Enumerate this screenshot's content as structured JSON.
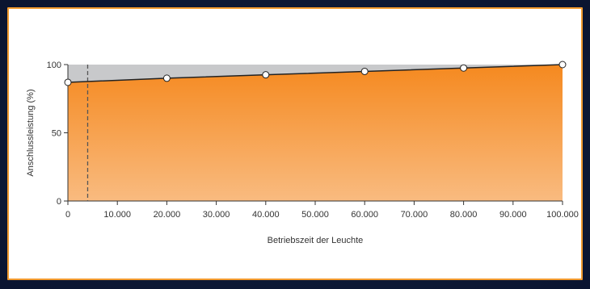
{
  "chart_data": {
    "type": "area",
    "xlabel": "Betriebszeit der Leuchte",
    "ylabel": "Anschlussleistung (%)",
    "xlim": [
      0,
      100000
    ],
    "ylim": [
      0,
      100
    ],
    "x_ticks": [
      {
        "value": 0,
        "label": "0"
      },
      {
        "value": 10000,
        "label": "10.000"
      },
      {
        "value": 20000,
        "label": "20.000"
      },
      {
        "value": 30000,
        "label": "30.000"
      },
      {
        "value": 40000,
        "label": "40.000"
      },
      {
        "value": 50000,
        "label": "50.000"
      },
      {
        "value": 60000,
        "label": "60.000"
      },
      {
        "value": 70000,
        "label": "70.000"
      },
      {
        "value": 80000,
        "label": "80.000"
      },
      {
        "value": 90000,
        "label": "90.000"
      },
      {
        "value": 100000,
        "label": "100.000"
      }
    ],
    "y_ticks": [
      {
        "value": 0,
        "label": "0"
      },
      {
        "value": 50,
        "label": "50"
      },
      {
        "value": 100,
        "label": "100"
      }
    ],
    "series": [
      {
        "x": [
          0,
          20000,
          40000,
          60000,
          80000,
          100000
        ],
        "y": [
          87,
          90,
          92.5,
          95,
          97.5,
          100
        ]
      }
    ],
    "reference_line_x": 4000,
    "grid": false,
    "colors": {
      "fill_top": "#f5891f",
      "fill_bottom": "#f9bb80",
      "background_area": "#c8c9cb",
      "line": "#222222",
      "marker_fill": "#ffffff",
      "frame": "#f29a2e"
    }
  }
}
